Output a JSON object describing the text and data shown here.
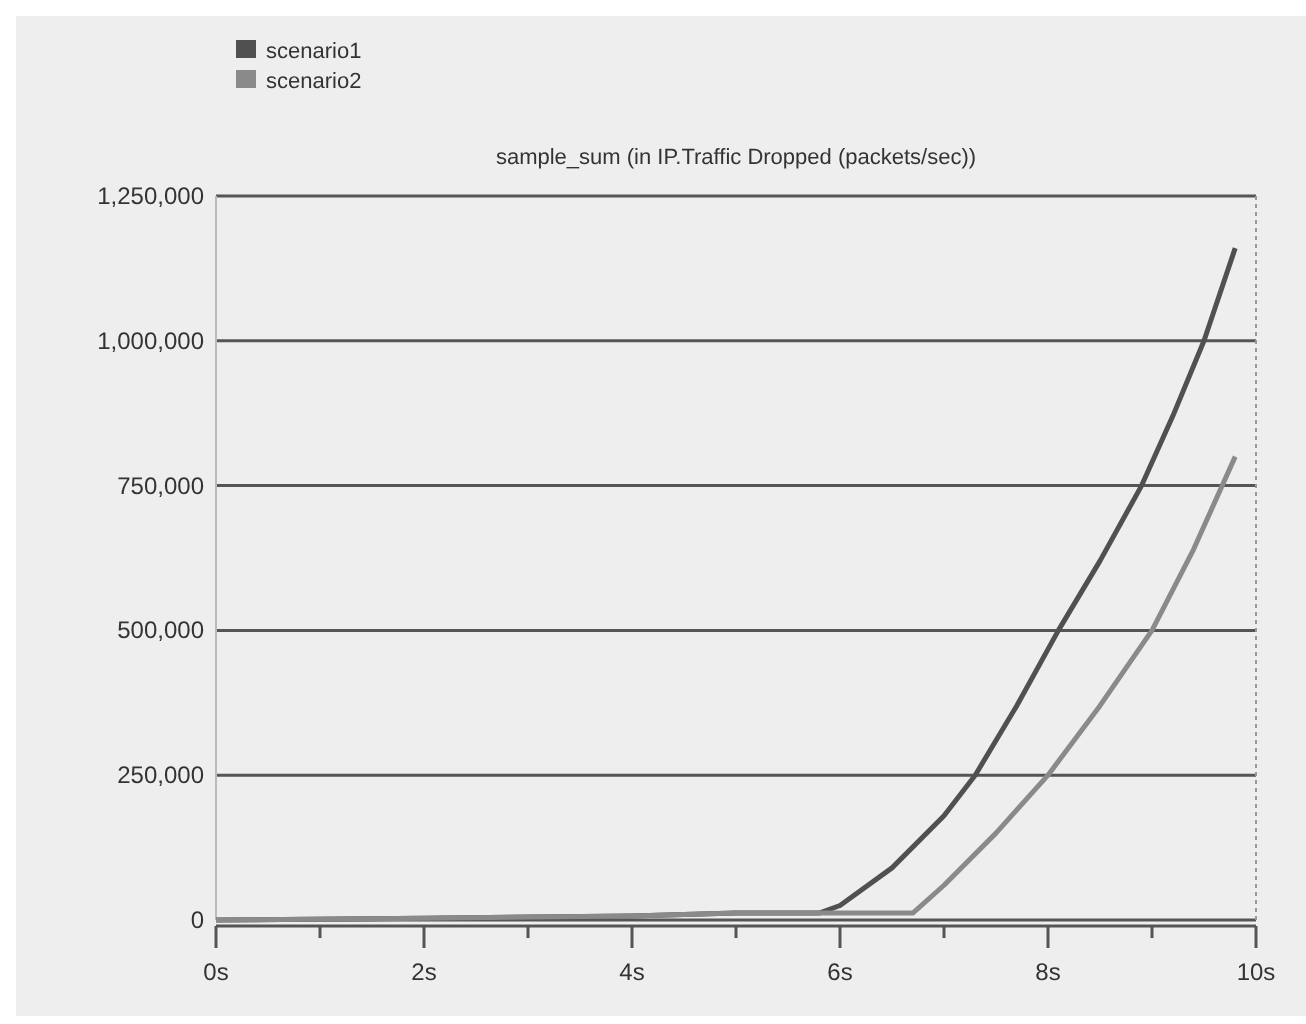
{
  "chart_data": {
    "type": "line",
    "title": "sample_sum (in IP.Traffic Dropped (packets/sec))",
    "xlim": [
      0,
      10
    ],
    "xticks": [
      {
        "value": 0,
        "label": "0s"
      },
      {
        "value": 1,
        "label": null
      },
      {
        "value": 2,
        "label": "2s"
      },
      {
        "value": 3,
        "label": null
      },
      {
        "value": 4,
        "label": "4s"
      },
      {
        "value": 5,
        "label": null
      },
      {
        "value": 6,
        "label": "6s"
      },
      {
        "value": 7,
        "label": null
      },
      {
        "value": 8,
        "label": "8s"
      },
      {
        "value": 9,
        "label": null
      },
      {
        "value": 10,
        "label": "10s"
      }
    ],
    "ylim": [
      0,
      1250000
    ],
    "yticks": [
      {
        "value": 0,
        "label": "0"
      },
      {
        "value": 250000,
        "label": "250,000"
      },
      {
        "value": 500000,
        "label": "500,000"
      },
      {
        "value": 750000,
        "label": "750,000"
      },
      {
        "value": 1000000,
        "label": "1,000,000"
      },
      {
        "value": 1250000,
        "label": "1,250,000"
      }
    ],
    "grid": "y",
    "legend": "top left",
    "marker": "none",
    "line_style": "solid",
    "series": [
      {
        "name": "scenario1",
        "color": "#505050",
        "x": [
          0,
          2,
          4,
          5,
          5.8,
          6,
          6.5,
          7,
          7.3,
          7.7,
          8.1,
          8.5,
          8.9,
          9.2,
          9.5,
          9.8
        ],
        "values": [
          0,
          3000,
          7000,
          12000,
          12000,
          25000,
          90000,
          180000,
          250000,
          370000,
          500000,
          620000,
          750000,
          870000,
          1000000,
          1160000
        ]
      },
      {
        "name": "scenario2",
        "color": "#8a8a8a",
        "x": [
          0,
          2,
          4,
          5,
          6,
          6.7,
          7,
          7.5,
          8,
          8.5,
          9,
          9.4,
          9.8
        ],
        "values": [
          0,
          3000,
          7000,
          12000,
          12000,
          12000,
          60000,
          150000,
          250000,
          370000,
          500000,
          640000,
          800000
        ]
      }
    ]
  }
}
